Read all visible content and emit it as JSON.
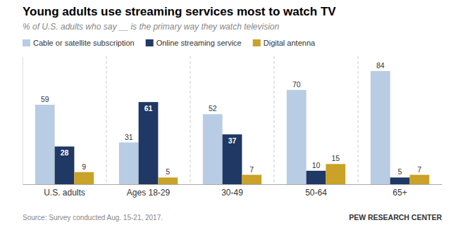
{
  "chart_data": {
    "type": "bar",
    "title": "Young adults use streaming services most to watch TV",
    "subtitle": "% of U.S. adults who say __ is the primary way they watch television",
    "categories": [
      "U.S. adults",
      "Ages 18-29",
      "30-49",
      "50-64",
      "65+"
    ],
    "series": [
      {
        "name": "Cable or satellite subscription",
        "color": "#b8cce4",
        "values": [
          59,
          31,
          52,
          70,
          84
        ]
      },
      {
        "name": "Online streaming service",
        "color": "#1f3864",
        "values": [
          28,
          61,
          37,
          10,
          5
        ]
      },
      {
        "name": "Digital antenna",
        "color": "#c9a227",
        "values": [
          9,
          5,
          7,
          15,
          7
        ]
      }
    ],
    "ylim": [
      0,
      95
    ],
    "grid": false,
    "legend": "top",
    "data_labels": true,
    "tick_labels": "x",
    "annotations": [
      "Source: Survey conducted Aug. 15-21, 2017.",
      "PEW RESEARCH CENTER"
    ]
  }
}
